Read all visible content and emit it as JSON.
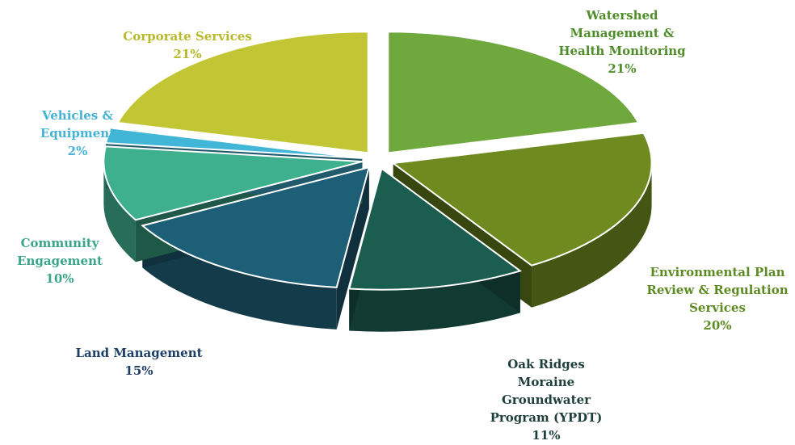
{
  "chart_data": {
    "type": "pie",
    "style": "3d-exploded",
    "start": "12 o'clock",
    "direction": "clockwise",
    "slices": [
      {
        "label": "Watershed Management & Health Monitoring",
        "lines": [
          "Watershed",
          "Management &",
          "Health Monitoring"
        ],
        "value": 21,
        "value_label": "21%",
        "color": "#6fa83c",
        "label_color": "#4f8d2a"
      },
      {
        "label": "Environmental Plan Review & Regulation Services",
        "lines": [
          "Environmental Plan",
          "Review & Regulation",
          "Services"
        ],
        "value": 20,
        "value_label": "20%",
        "color": "#6f8b20",
        "label_color": "#5d8a22"
      },
      {
        "label": "Oak Ridges Moraine Groundwater Program (YPDT)",
        "lines": [
          "Oak Ridges",
          "Moraine",
          "Groundwater",
          "Program (YPDT)"
        ],
        "value": 11,
        "value_label": "11%",
        "color": "#1b5e50",
        "label_color": "#1f3f3a"
      },
      {
        "label": "Land Management",
        "lines": [
          "Land Management"
        ],
        "value": 15,
        "value_label": "15%",
        "color": "#1e5f78",
        "label_color": "#1d3f66"
      },
      {
        "label": "Community Engagement",
        "lines": [
          "Community",
          "Engagement"
        ],
        "value": 10,
        "value_label": "10%",
        "color": "#3fb08e",
        "label_color": "#3aa58a"
      },
      {
        "label": "Vehicles & Equipment",
        "lines": [
          "Vehicles &",
          "Equipment"
        ],
        "value": 2,
        "value_label": "2%",
        "color": "#42b6d6",
        "label_color": "#45b3d6"
      },
      {
        "label": "Corporate Services",
        "lines": [
          "Corporate Services"
        ],
        "value": 21,
        "value_label": "21%",
        "color": "#c2c634",
        "label_color": "#b8b92a"
      }
    ]
  }
}
